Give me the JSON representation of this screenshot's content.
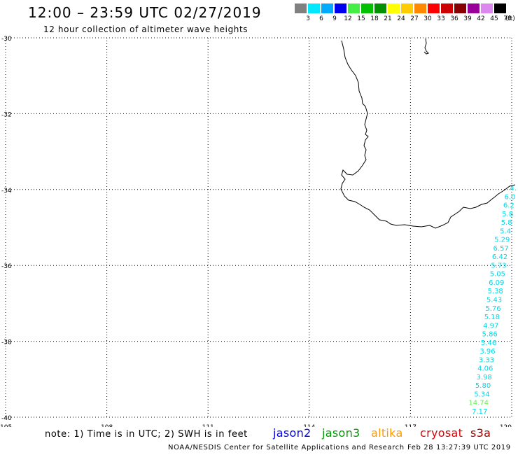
{
  "header": {
    "title": "12:00 – 23:59 UTC 02/27/2019",
    "subtitle": "12 hour collection of altimeter wave heights"
  },
  "color_scale": {
    "unit": "(ft)",
    "stops": [
      {
        "label": "3",
        "color": "#808080"
      },
      {
        "label": "6",
        "color": "#00e8ff"
      },
      {
        "label": "9",
        "color": "#00aaff"
      },
      {
        "label": "12",
        "color": "#0000f0"
      },
      {
        "label": "15",
        "color": "#44ee44"
      },
      {
        "label": "18",
        "color": "#00c000"
      },
      {
        "label": "21",
        "color": "#009000"
      },
      {
        "label": "24",
        "color": "#ffff00"
      },
      {
        "label": "27",
        "color": "#ffcc00"
      },
      {
        "label": "30",
        "color": "#ff8800"
      },
      {
        "label": "33",
        "color": "#ff0000"
      },
      {
        "label": "36",
        "color": "#cc0000"
      },
      {
        "label": "39",
        "color": "#880000"
      },
      {
        "label": "42",
        "color": "#990099"
      },
      {
        "label": "45",
        "color": "#dd88ee"
      },
      {
        "label": "70",
        "color": "#000000"
      }
    ]
  },
  "map": {
    "lat_labels": [
      "-30",
      "-32",
      "-34",
      "-36",
      "-38",
      "-40"
    ],
    "lon_labels": [
      "105",
      "108",
      "111",
      "114",
      "117",
      "120"
    ],
    "lat_range": [
      -40,
      -30
    ],
    "lon_range": [
      105,
      120
    ],
    "grid": "dotted",
    "observations": [
      {
        "value": "4.",
        "color": "#00d8e8"
      },
      {
        "value": "6.0",
        "color": "#00d8e8"
      },
      {
        "value": "6.2",
        "color": "#00d8e8"
      },
      {
        "value": "5.8",
        "color": "#00d8e8"
      },
      {
        "value": "5.8",
        "color": "#00d8e8"
      },
      {
        "value": "5.4",
        "color": "#00d8e8"
      },
      {
        "value": "5.29",
        "color": "#00d8e8"
      },
      {
        "value": "6.57",
        "color": "#00d8e8"
      },
      {
        "value": "6.42",
        "color": "#00d8e8"
      },
      {
        "value": "5.73",
        "color": "#00d8e8"
      },
      {
        "value": "5.05",
        "color": "#00d8e8"
      },
      {
        "value": "6.09",
        "color": "#00d8e8"
      },
      {
        "value": "5.38",
        "color": "#00d8e8"
      },
      {
        "value": "5.43",
        "color": "#00d8e8"
      },
      {
        "value": "5.76",
        "color": "#00d8e8"
      },
      {
        "value": "5.18",
        "color": "#00d8e8"
      },
      {
        "value": "4.97",
        "color": "#00d8e8"
      },
      {
        "value": "5.86",
        "color": "#00d8e8"
      },
      {
        "value": "5.46",
        "color": "#00d8e8"
      },
      {
        "value": "3.96",
        "color": "#00d8e8"
      },
      {
        "value": "3.33",
        "color": "#00d8e8"
      },
      {
        "value": "4.06",
        "color": "#00d8e8"
      },
      {
        "value": "3.98",
        "color": "#00d8e8"
      },
      {
        "value": "5.80",
        "color": "#00d8e8"
      },
      {
        "value": "5.34",
        "color": "#00d8e8"
      },
      {
        "value": "14.74",
        "color": "#66ee55"
      },
      {
        "value": "7.17",
        "color": "#00d8e8"
      }
    ]
  },
  "legend": {
    "note": "note: 1) Time is in UTC; 2) SWH is in feet",
    "satellites": [
      {
        "name": "jason2",
        "color": "#0000ee"
      },
      {
        "name": "jason3",
        "color": "#009900"
      },
      {
        "name": "altika",
        "color": "#ff9900"
      },
      {
        "name": "cryosat",
        "color": "#dd0000"
      },
      {
        "name": "s3a",
        "color": "#990000"
      }
    ]
  },
  "footer": {
    "credit": "NOAA/NESDIS Center for Satellite Applications and Research",
    "timestamp": "Feb 28 13:27:39 UTC 2019"
  }
}
